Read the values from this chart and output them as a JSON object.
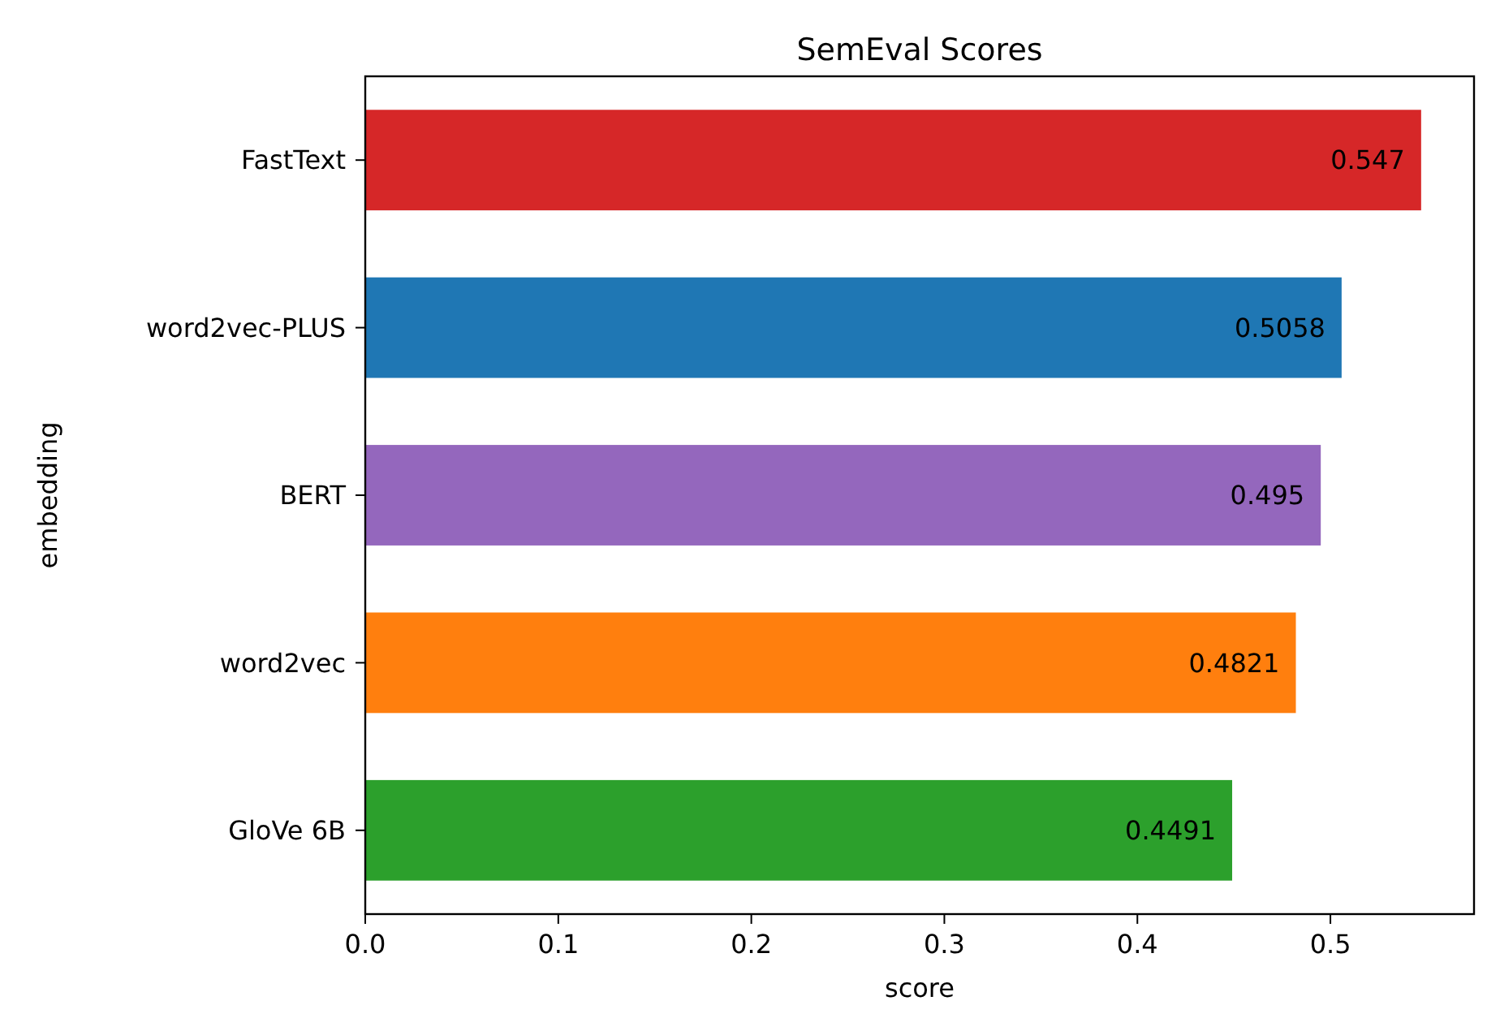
{
  "chart_data": {
    "type": "bar",
    "orientation": "horizontal",
    "title": "SemEval Scores",
    "xlabel": "score",
    "ylabel": "embedding",
    "categories": [
      "FastText",
      "word2vec-PLUS",
      "BERT",
      "word2vec",
      "GloVe 6B"
    ],
    "values": [
      0.547,
      0.5058,
      0.495,
      0.4821,
      0.4491
    ],
    "colors": [
      "#d62728",
      "#1f77b4",
      "#9467bd",
      "#ff7f0e",
      "#2ca02c"
    ],
    "xlim": [
      0,
      0.5744
    ],
    "xticks": [
      {
        "value": 0,
        "label": "0.0"
      },
      {
        "value": 0.1,
        "label": "0.1"
      },
      {
        "value": 0.2,
        "label": "0.2"
      },
      {
        "value": 0.3,
        "label": "0.3"
      },
      {
        "value": 0.4,
        "label": "0.4"
      },
      {
        "value": 0.5,
        "label": "0.5"
      }
    ],
    "data_labels": true
  }
}
